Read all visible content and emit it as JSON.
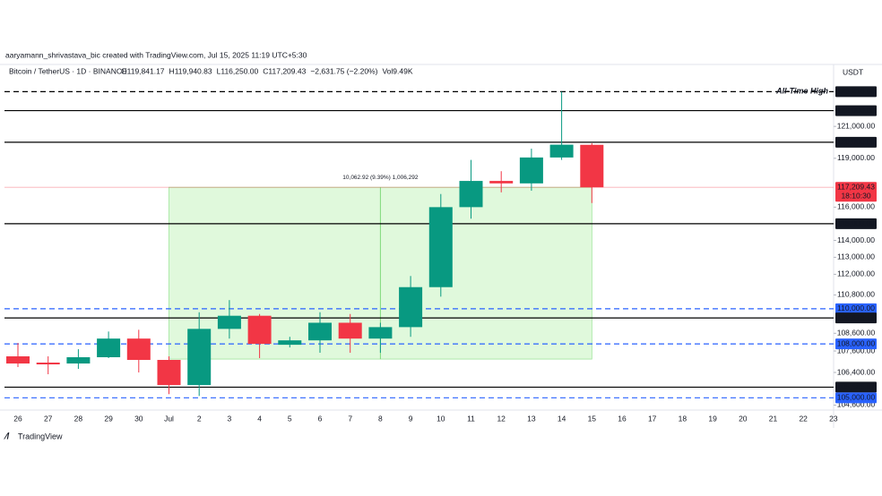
{
  "chart_data": {
    "type": "candlestick",
    "attribution": "aaryamann_shrivastava_bic created with TradingView.com, Jul 15, 2025 11:19 UTC+5:30",
    "symbol": "Bitcoin / TetherUS · 1D · BINANCE",
    "legend_values": [
      {
        "key": "O",
        "text": "119,841.17"
      },
      {
        "key": "H",
        "text": "119,940.83"
      },
      {
        "key": "L",
        "text": "116,250.00"
      },
      {
        "key": "C",
        "text": "117,209.43"
      },
      {
        "key": "",
        "text": "−2,631.75 (−2.20%)"
      },
      {
        "key": "Vol",
        "text": "9.49K"
      }
    ],
    "currency": "USDT",
    "logo": "TradingView",
    "categories": [
      "26",
      "27",
      "28",
      "29",
      "30",
      "Jul",
      "2",
      "3",
      "4",
      "5",
      "6",
      "7",
      "8",
      "9",
      "10",
      "11",
      "12",
      "13",
      "14",
      "15",
      "16",
      "17",
      "18",
      "19",
      "20",
      "21",
      "22",
      "23"
    ],
    "open": [
      107300,
      106950,
      106900,
      107250,
      108300,
      107100,
      105700,
      108850,
      109600,
      107950,
      108200,
      109200,
      108300,
      108950,
      111250,
      116000,
      117600,
      117450,
      119050,
      119841.17,
      null,
      null,
      null,
      null,
      null,
      null,
      null,
      null
    ],
    "high": [
      108050,
      107300,
      107700,
      108700,
      108800,
      107300,
      109800,
      110500,
      109700,
      108400,
      109800,
      109700,
      109200,
      111900,
      116800,
      118900,
      118200,
      119600,
      123218,
      119940.83,
      null,
      null,
      null,
      null,
      null,
      null,
      null,
      null
    ],
    "low": [
      106700,
      106300,
      106600,
      107200,
      106400,
      105200,
      105100,
      108300,
      107200,
      107800,
      107500,
      107500,
      107500,
      108400,
      110700,
      115300,
      116900,
      117000,
      118900,
      116250,
      null,
      null,
      null,
      null,
      null,
      null,
      null,
      null
    ],
    "close": [
      106900,
      106850,
      107250,
      108300,
      107100,
      105700,
      108850,
      109600,
      108000,
      108200,
      109200,
      108300,
      108950,
      111250,
      116000,
      117600,
      117450,
      119050,
      119850,
      117209.43,
      null,
      null,
      null,
      null,
      null,
      null,
      null,
      null
    ],
    "up_color": "#089981",
    "down_color": "#f23645",
    "log_scale": true,
    "ylim": [
      104330,
      124980
    ],
    "yticks": [
      {
        "value": 121000,
        "label": "121,000.00"
      },
      {
        "value": 119000,
        "label": "119,000.00"
      },
      {
        "value": 116000,
        "label": "116,000.00"
      },
      {
        "value": 114000,
        "label": "114,000.00"
      },
      {
        "value": 113000,
        "label": "113,000.00"
      },
      {
        "value": 112000,
        "label": "112,000.00"
      },
      {
        "value": 110800,
        "label": "110,800.00"
      },
      {
        "value": 108600,
        "label": "108,600.00"
      },
      {
        "value": 107600,
        "label": "107,600.00"
      },
      {
        "value": 106400,
        "label": "106,400.00"
      },
      {
        "value": 104600,
        "label": "104,600.00"
      }
    ],
    "levels": [
      {
        "value": 123218,
        "label": "123,218.00",
        "style": "dashed",
        "color": "#000000",
        "annotation": "All-Time High"
      },
      {
        "value": 122000,
        "label": "122,000.00",
        "style": "solid",
        "color": "#000000"
      },
      {
        "value": 120000,
        "label": "120,000.00",
        "style": "solid",
        "color": "#000000"
      },
      {
        "value": 115000,
        "label": "115,000.00",
        "style": "solid",
        "color": "#000000"
      },
      {
        "value": 110000,
        "label": "110,000.00",
        "style": "dashed",
        "color": "#2962ff"
      },
      {
        "value": 109476.13,
        "label": "109,476.13",
        "style": "solid",
        "color": "#000000"
      },
      {
        "value": 108000,
        "label": "108,000.00",
        "style": "dashed",
        "color": "#2962ff"
      },
      {
        "value": 105585.67,
        "label": "105,585.67",
        "style": "solid",
        "color": "#000000"
      },
      {
        "value": 105000,
        "label": "105,000.00",
        "style": "dashed",
        "color": "#2962ff"
      }
    ],
    "price": {
      "value": 117209.43,
      "label": "117,209.43",
      "countdown": "18:10:30",
      "color": "#f23645"
    },
    "measure": {
      "low": 107146.51,
      "high": 117209.43,
      "label": "10,062.92 (9.39%) 1,006,292",
      "color": "#ccf5c4"
    }
  }
}
